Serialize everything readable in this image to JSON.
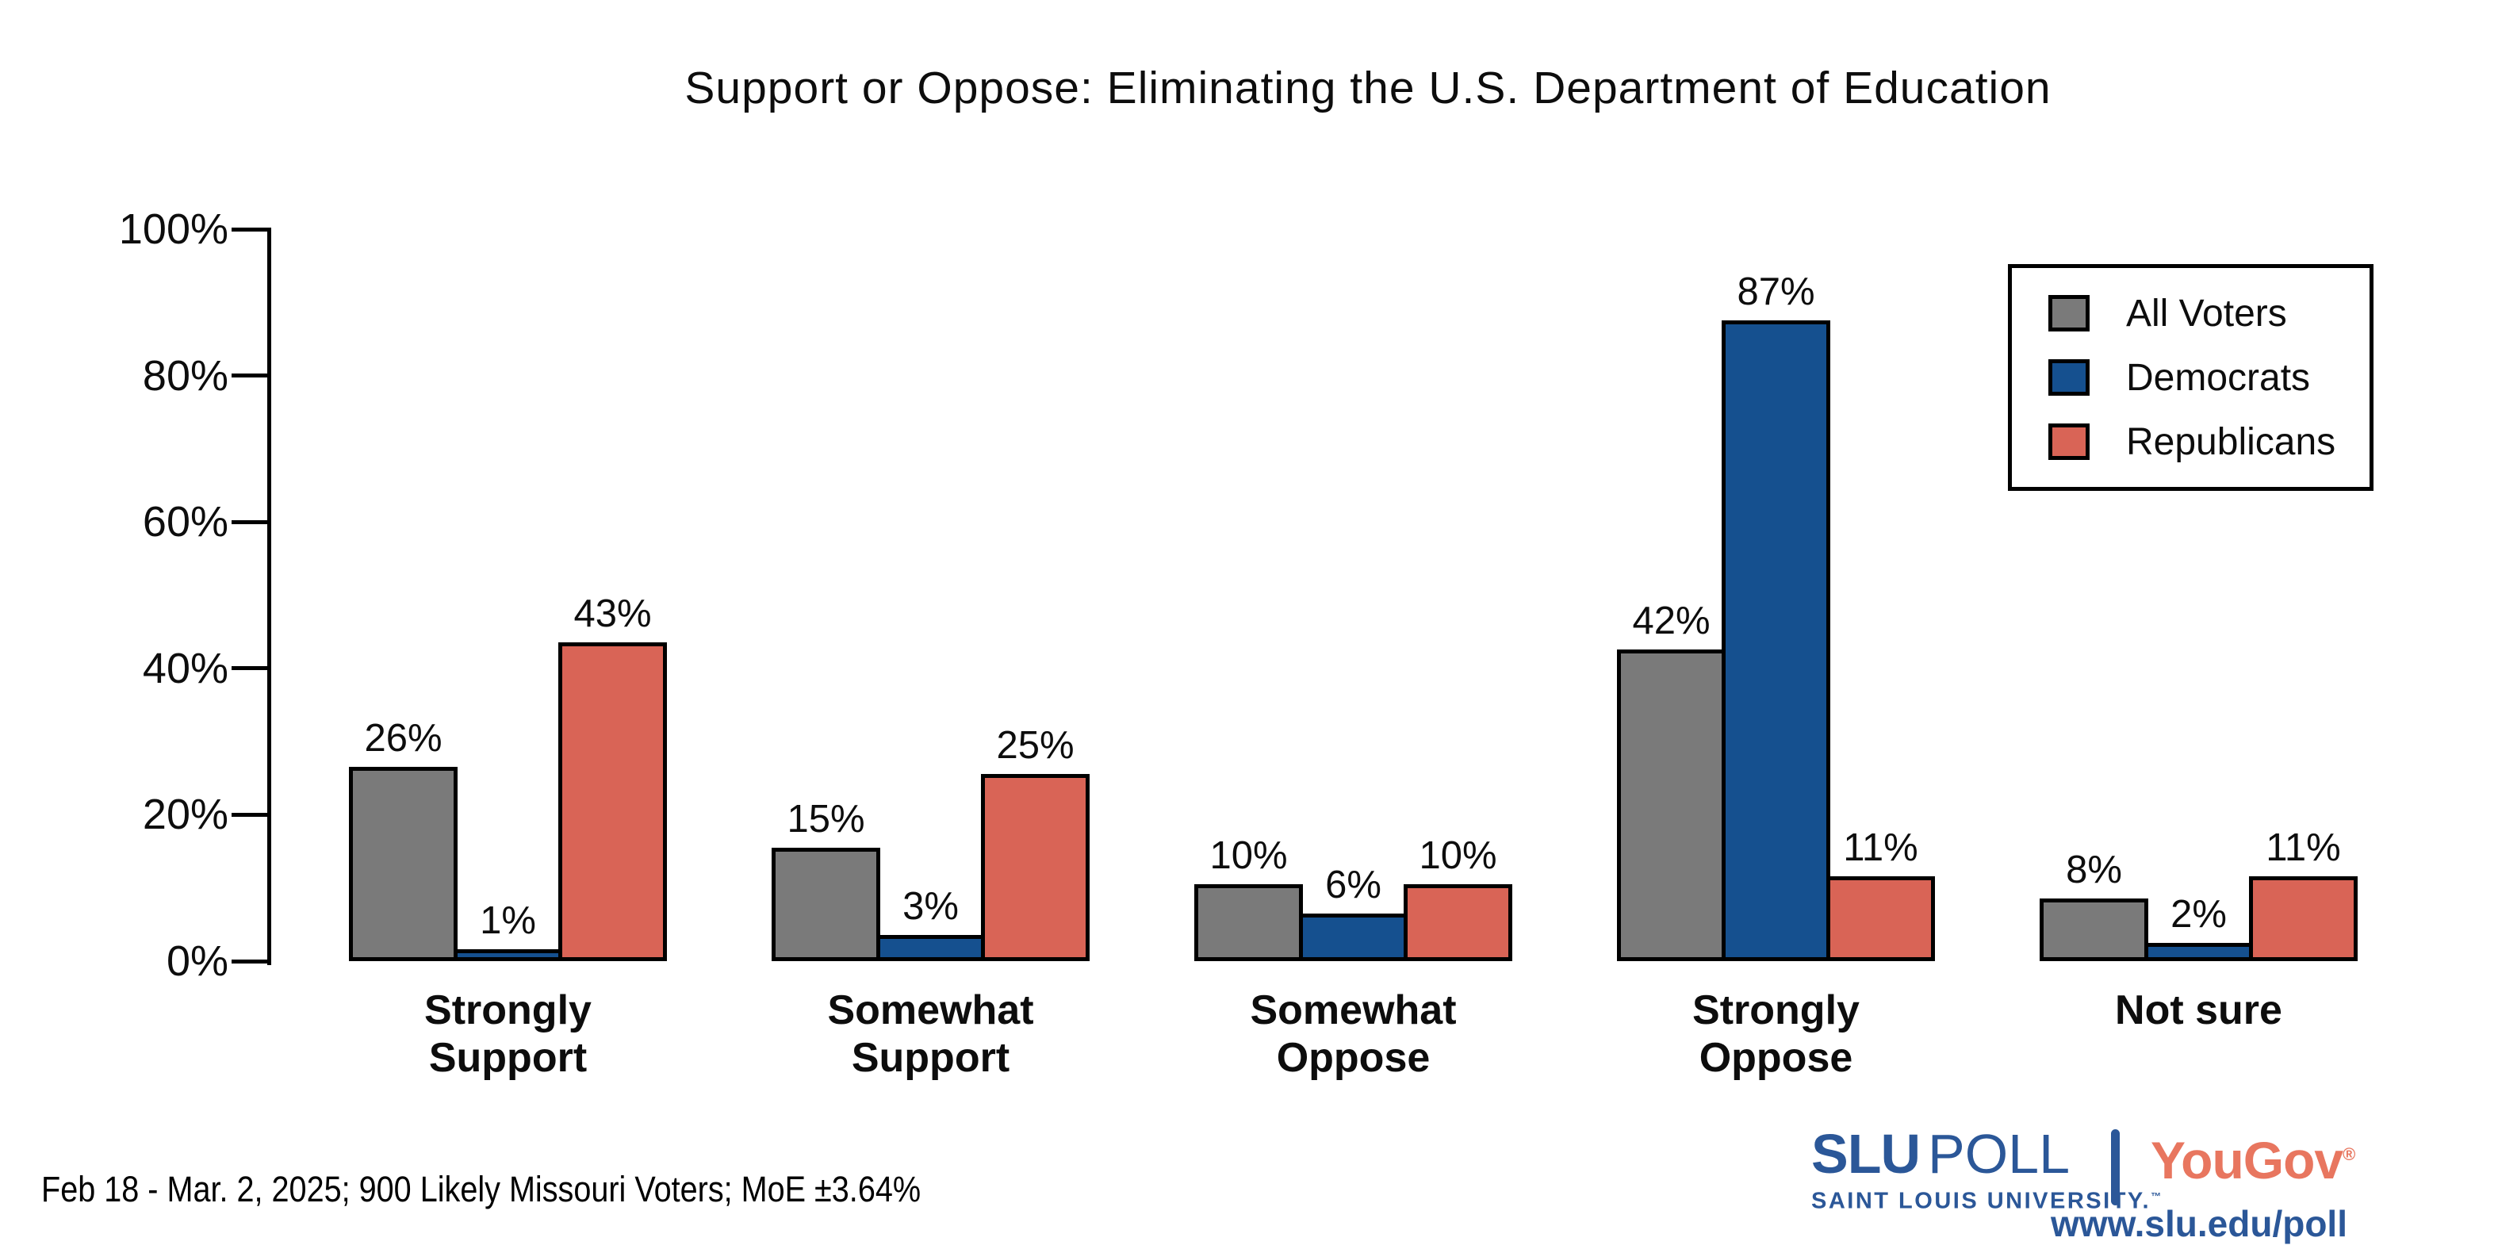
{
  "chart_data": {
    "type": "bar",
    "title": "Support or Oppose: Eliminating the U.S. Department of Education",
    "categories": [
      "Strongly\nSupport",
      "Somewhat\nSupport",
      "Somewhat\nOppose",
      "Strongly\nOppose",
      "Not sure"
    ],
    "series": [
      {
        "name": "All Voters",
        "color": "#7A7A7A",
        "values": [
          26,
          15,
          10,
          42,
          8
        ]
      },
      {
        "name": "Democrats",
        "color": "#15508F",
        "values": [
          1,
          3,
          6,
          87,
          2
        ]
      },
      {
        "name": "Republicans",
        "color": "#D96456",
        "values": [
          43,
          25,
          10,
          11,
          11
        ]
      }
    ],
    "xlabel": "",
    "ylabel": "",
    "ylim": [
      0,
      100
    ],
    "y_ticks": [
      0,
      20,
      40,
      60,
      80,
      100
    ],
    "y_tick_suffix": "%",
    "value_label_suffix": "%",
    "grid": false,
    "legend_position": "top-right"
  },
  "footer": {
    "source_note": "Feb 18 - Mar. 2, 2025; 900 Likely Missouri Voters; MoE ±3.64%",
    "slu_poll": {
      "slu": "SLU",
      "poll": "POLL",
      "subtitle": "SAINT LOUIS UNIVERSITY.",
      "trademark": "™"
    },
    "yougov": {
      "name": "YouGov",
      "registered": "®"
    },
    "url": "www.slu.edu/poll"
  },
  "colors": {
    "ink": "#000000",
    "all_voters_gray": "#7A7A7A",
    "democrats_blue": "#15508F",
    "republicans_red": "#D96456",
    "slu_blue": "#2B5798",
    "yougov_red": "#E8765F"
  }
}
